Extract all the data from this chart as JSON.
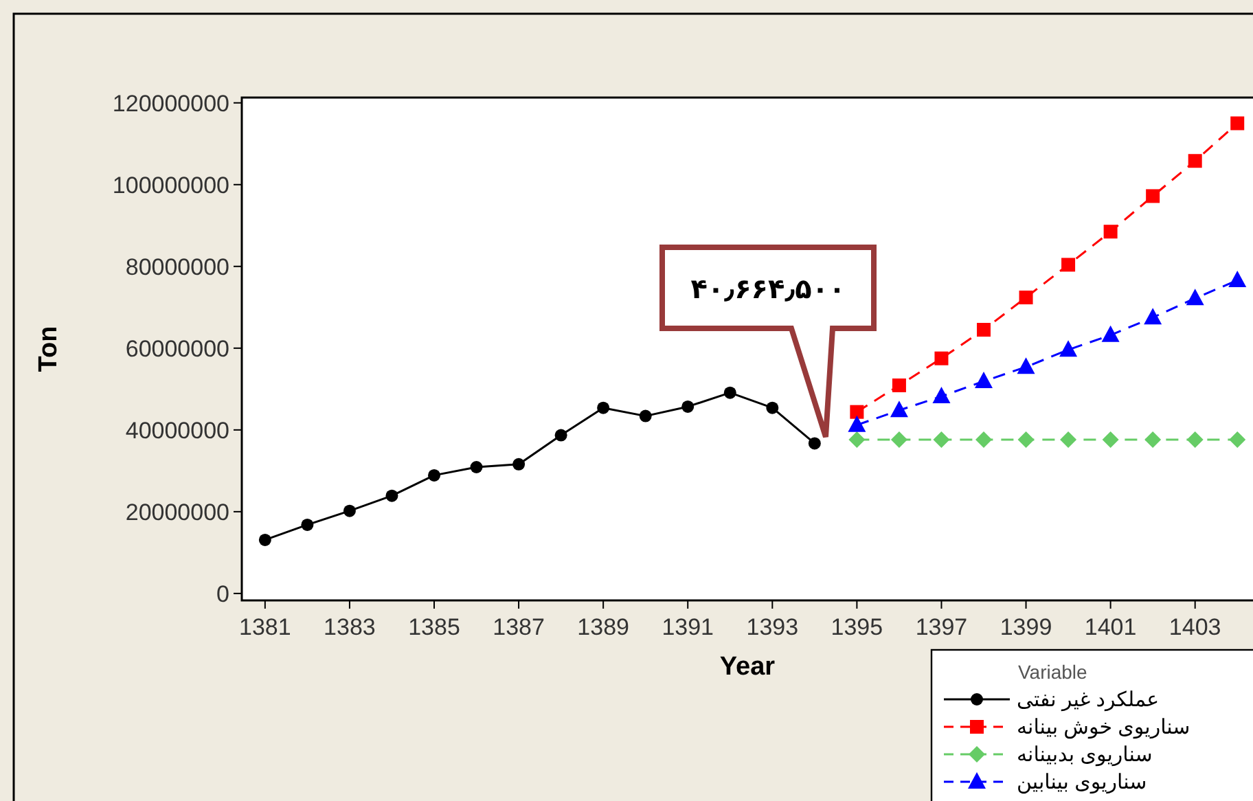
{
  "chart_data": {
    "type": "line",
    "xlabel": "Year",
    "ylabel": "Ton",
    "legend_title": "Variable",
    "legend": "bottom right",
    "x": [
      1381,
      1382,
      1383,
      1384,
      1385,
      1386,
      1387,
      1388,
      1389,
      1390,
      1391,
      1392,
      1393,
      1394,
      1395,
      1396,
      1397,
      1398,
      1399,
      1400,
      1401,
      1402,
      1403,
      1404
    ],
    "xlim": [
      1380.45,
      1404.5
    ],
    "xticks": [
      1381,
      1383,
      1385,
      1387,
      1389,
      1391,
      1393,
      1395,
      1397,
      1399,
      1401,
      1403
    ],
    "ylim": [
      -1700000,
      121300000
    ],
    "yticks": [
      0,
      20000000,
      40000000,
      60000000,
      80000000,
      100000000,
      120000000
    ],
    "grid": false,
    "series": [
      {
        "name": "عملکرد غیر نفتی",
        "color": "#000000",
        "marker": "circle",
        "line_style": "solid",
        "values": [
          13100000,
          16800000,
          20200000,
          23900000,
          28900000,
          30900000,
          31600000,
          38700000,
          45400000,
          43400000,
          45700000,
          49100000,
          45400000,
          36700000,
          null,
          null,
          null,
          null,
          null,
          null,
          null,
          null,
          null,
          null
        ]
      },
      {
        "name": "سناریوی خوش بینانه",
        "color": "#ff0000",
        "marker": "square",
        "line_style": "dashed",
        "values": [
          null,
          null,
          null,
          null,
          null,
          null,
          null,
          null,
          null,
          null,
          null,
          null,
          null,
          null,
          44400000,
          50900000,
          57500000,
          64500000,
          72400000,
          80400000,
          88500000,
          97200000,
          105800000,
          115000000
        ]
      },
      {
        "name": "سناریوی بدبینانه",
        "color": "#66cc66",
        "marker": "diamond",
        "line_style": "dashed",
        "values": [
          null,
          null,
          null,
          null,
          null,
          null,
          null,
          null,
          null,
          null,
          null,
          null,
          null,
          null,
          37600000,
          37600000,
          37600000,
          37600000,
          37600000,
          37600000,
          37600000,
          37600000,
          37600000,
          37600000
        ]
      },
      {
        "name": "سناریوی بینابین",
        "color": "#0000ff",
        "marker": "triangle",
        "line_style": "dashed",
        "values": [
          null,
          null,
          null,
          null,
          null,
          null,
          null,
          null,
          null,
          null,
          null,
          null,
          null,
          null,
          41200000,
          44800000,
          48200000,
          51900000,
          55400000,
          59600000,
          63200000,
          67500000,
          72200000,
          76600000
        ]
      }
    ],
    "annotations": [
      "۴۰٫۶۶۴٫۵۰۰"
    ]
  }
}
